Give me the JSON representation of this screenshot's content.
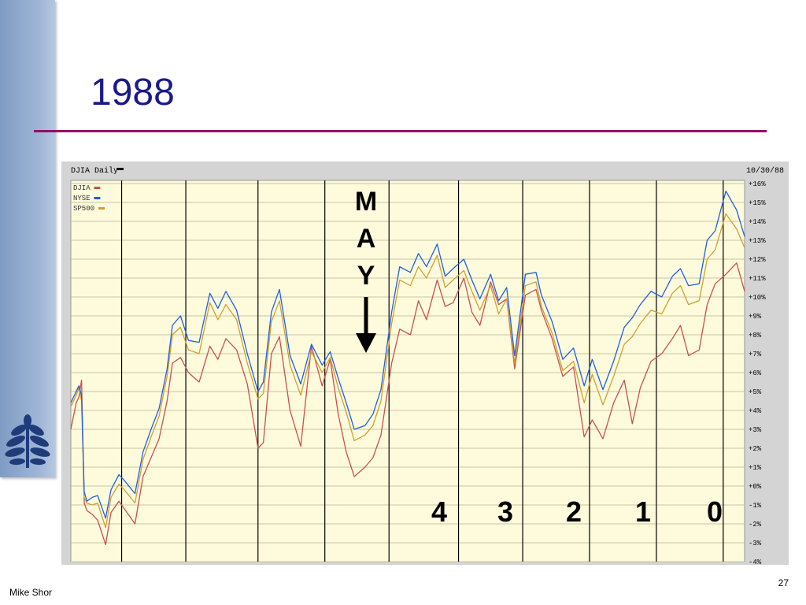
{
  "slide": {
    "title": "1988",
    "author": "Mike Shor",
    "page_number": "27"
  },
  "colors": {
    "title": "#1a1a8c",
    "rule": "#990066",
    "sidebar": "#8fa8cc",
    "plot_bg": "#fdfbdc",
    "djia": "#c85050",
    "nyse": "#2060e0",
    "sp500": "#d0a030"
  },
  "chart_data": {
    "type": "line",
    "title": "DJIA Daily",
    "date_label": "10/30/88",
    "legend": [
      "DJIA",
      "NYSE",
      "SP500"
    ],
    "legend_position": "top-left",
    "ylim": [
      -4,
      16
    ],
    "yticks": [
      "+16%",
      "+15%",
      "+14%",
      "+13%",
      "+12%",
      "+11%",
      "+10%",
      "+9%",
      "+8%",
      "+7%",
      "+6%",
      "+5%",
      "+4%",
      "+3%",
      "+2%",
      "+1%",
      "+0%",
      "-1%",
      "-2%",
      "-3%",
      "-4%"
    ],
    "grid": true,
    "x": [
      0,
      2,
      3,
      4,
      5,
      6,
      8,
      10,
      13,
      15,
      18,
      20,
      24,
      27,
      30,
      33,
      36,
      38,
      41,
      44,
      48,
      52,
      55,
      58,
      62,
      66,
      70,
      72,
      75,
      78,
      82,
      86,
      90,
      94,
      97,
      100,
      103,
      106,
      110,
      113,
      116,
      120,
      123,
      127,
      130,
      133,
      137,
      140,
      143,
      147,
      150,
      153,
      157,
      160,
      163,
      166,
      170,
      174,
      176,
      180,
      184,
      188,
      192,
      195,
      199,
      203,
      207,
      210,
      213,
      217,
      221,
      225,
      228,
      231,
      235,
      238,
      241,
      245,
      249,
      252
    ],
    "series": [
      {
        "name": "DJIA",
        "values": [
          3.0,
          4.4,
          4.7,
          5.6,
          -0.9,
          -1.3,
          -1.5,
          -1.8,
          -3.1,
          -1.4,
          -0.8,
          -1.2,
          -2.0,
          0.5,
          1.5,
          2.5,
          4.5,
          6.5,
          6.8,
          6.0,
          5.5,
          7.4,
          6.7,
          7.8,
          7.2,
          5.4,
          2.0,
          2.3,
          7.0,
          7.9,
          4.0,
          2.1,
          7.4,
          5.3,
          6.7,
          3.8,
          1.8,
          0.5,
          1.0,
          1.5,
          2.7,
          6.5,
          8.3,
          8.0,
          9.8,
          8.8,
          10.9,
          9.5,
          9.7,
          11.0,
          9.2,
          8.5,
          10.8,
          9.6,
          9.9,
          6.2,
          10.1,
          10.4,
          9.3,
          7.8,
          5.8,
          6.3,
          2.6,
          3.5,
          2.5,
          4.4,
          5.6,
          3.3,
          5.2,
          6.6,
          7.0,
          7.8,
          8.5,
          6.9,
          7.2,
          9.6,
          10.7,
          11.2,
          11.8,
          10.3
        ]
      },
      {
        "name": "NYSE",
        "values": [
          4.4,
          5.0,
          5.3,
          4.8,
          -0.3,
          -0.8,
          -0.6,
          -0.5,
          -1.7,
          -0.2,
          0.6,
          0.3,
          -0.4,
          1.8,
          3.0,
          4.1,
          6.2,
          8.5,
          9.0,
          7.7,
          7.6,
          10.2,
          9.4,
          10.3,
          9.3,
          7.0,
          5.0,
          5.5,
          9.2,
          10.4,
          6.9,
          5.4,
          7.5,
          6.4,
          7.1,
          5.7,
          4.4,
          3.0,
          3.2,
          3.8,
          5.1,
          9.2,
          11.6,
          11.3,
          12.3,
          11.6,
          12.8,
          11.1,
          11.5,
          12.0,
          10.9,
          9.9,
          11.2,
          9.8,
          10.5,
          6.9,
          11.2,
          11.3,
          10.1,
          8.7,
          6.7,
          7.3,
          5.3,
          6.7,
          5.1,
          6.6,
          8.4,
          8.9,
          9.6,
          10.3,
          10.0,
          11.1,
          11.5,
          10.6,
          10.7,
          13.0,
          13.5,
          15.6,
          14.6,
          13.2
        ]
      },
      {
        "name": "SP500",
        "values": [
          4.2,
          4.8,
          5.2,
          4.5,
          -0.6,
          -0.9,
          -1.0,
          -0.9,
          -2.2,
          -0.6,
          0.1,
          -0.2,
          -0.9,
          1.4,
          2.6,
          3.7,
          5.8,
          8.0,
          8.4,
          7.2,
          7.0,
          9.7,
          8.8,
          9.6,
          8.8,
          6.5,
          4.6,
          4.9,
          8.7,
          9.8,
          6.4,
          4.8,
          7.1,
          6.0,
          6.8,
          5.2,
          3.9,
          2.4,
          2.7,
          3.2,
          4.5,
          8.6,
          10.9,
          10.6,
          11.6,
          11.0,
          12.2,
          10.5,
          10.9,
          11.4,
          10.3,
          9.3,
          10.6,
          9.1,
          9.9,
          6.5,
          10.6,
          10.8,
          9.5,
          8.1,
          6.1,
          6.6,
          4.4,
          5.9,
          4.3,
          5.8,
          7.5,
          7.9,
          8.6,
          9.3,
          9.1,
          10.2,
          10.6,
          9.6,
          9.8,
          12.0,
          12.5,
          14.4,
          13.6,
          12.6
        ]
      }
    ],
    "month_dividers": [
      19,
      43,
      70,
      95,
      119,
      145,
      169,
      194,
      219,
      244
    ],
    "annotations": {
      "may_letters": [
        "M",
        "A",
        "Y"
      ],
      "countdown": [
        "4",
        "3",
        "2",
        "1",
        "0"
      ]
    }
  }
}
